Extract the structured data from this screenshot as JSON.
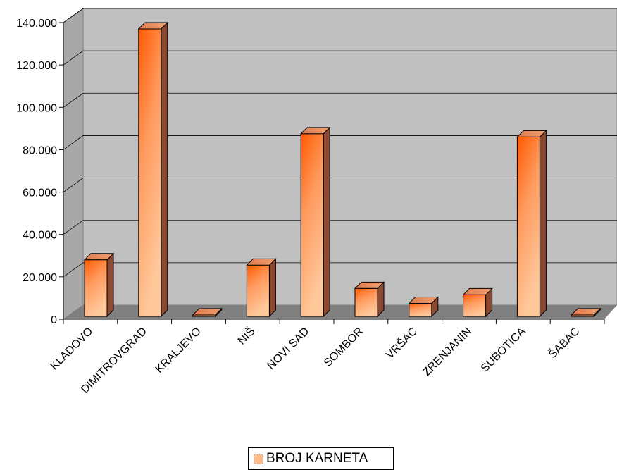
{
  "chart_data": {
    "type": "bar",
    "categories": [
      "KLADOVO",
      "DIMITROVGRAD",
      "KRALJEVO",
      "NIŠ",
      "NOVI SAD",
      "SOMBOR",
      "VRŠAC",
      "ZRENJANIN",
      "SUBOTICA",
      "ŠABAC"
    ],
    "series": [
      {
        "name": "BROJ KARNETA",
        "values": [
          28000,
          137000,
          300,
          25500,
          87500,
          14500,
          7500,
          11500,
          86000,
          300
        ]
      }
    ],
    "ylim": [
      0,
      140000
    ],
    "yticks": [
      {
        "value": 0,
        "label": "0"
      },
      {
        "value": 20000,
        "label": "20.000"
      },
      {
        "value": 40000,
        "label": "40.000"
      },
      {
        "value": 60000,
        "label": "60.000"
      },
      {
        "value": 80000,
        "label": "80.000"
      },
      {
        "value": 100000,
        "label": "100.000"
      },
      {
        "value": 120000,
        "label": "120.000"
      },
      {
        "value": 140000,
        "label": "140.000"
      }
    ],
    "grid": true,
    "legend_position": "bottom",
    "colors": {
      "bar_front": "#ffbb88",
      "bar_hot": "#ff5a00",
      "bar_side": "#8b4a2f",
      "wall": "#c0c0c0",
      "floor": "#808080"
    }
  }
}
